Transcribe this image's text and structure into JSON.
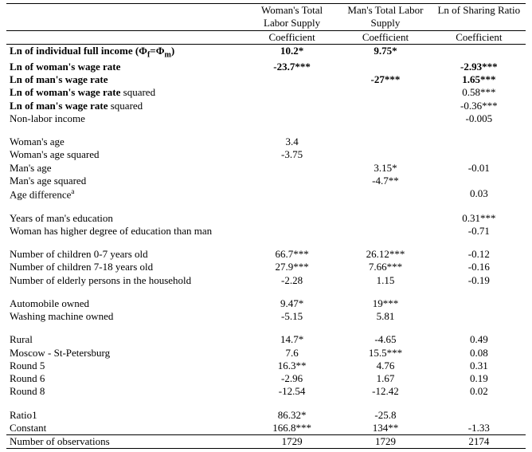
{
  "headers": {
    "woman_total": "Woman's Total Labor Supply",
    "man_total": "Man's Total Labor Supply",
    "sharing": "Ln of Sharing Ratio",
    "coef": "Coefficient"
  },
  "rows": [
    {
      "label": "Ln of individual full income (Φᵣ=Φₘ)",
      "alt_label": "Ln of individual full income (Φf=Φm)",
      "bold": true,
      "w": "10.2*",
      "m": "9.75*",
      "s": ""
    },
    {
      "label": "Ln of woman's wage rate",
      "bold": true,
      "w": "-23.7***",
      "m": "",
      "s": "-2.93***",
      "s_bold": true
    },
    {
      "label": "Ln of man's wage rate",
      "bold": true,
      "w": "",
      "m": "-27***",
      "s": "1.65***",
      "s_bold": true
    },
    {
      "label": "Ln of woman's wage rate squared",
      "bold_prefix": "Ln of woman's wage rate",
      "suffix": " squared",
      "w": "",
      "m": "",
      "s": "0.58***"
    },
    {
      "label": "Ln of man's wage rate squared",
      "bold_prefix": "Ln of man's wage rate",
      "suffix": " squared",
      "w": "",
      "m": "",
      "s": "-0.36***"
    },
    {
      "label": "Non-labor income",
      "w": "",
      "m": "",
      "s": "-0.005"
    },
    {
      "spacer": true
    },
    {
      "label": "Woman's age",
      "w": "3.4",
      "m": "",
      "s": ""
    },
    {
      "label": "Woman's age squared",
      "w": "-3.75",
      "m": "",
      "s": ""
    },
    {
      "label": "Man's age",
      "w": "",
      "m": "3.15*",
      "s": "-0.01"
    },
    {
      "label": "Man's age squared",
      "w": "",
      "m": "-4.7**",
      "s": ""
    },
    {
      "label": "Age difference",
      "sup": "a",
      "w": "",
      "m": "",
      "s": "0.03"
    },
    {
      "spacer": true
    },
    {
      "label": "Years of man's education",
      "w": "",
      "m": "",
      "s": "0.31***"
    },
    {
      "label": "Woman has higher degree of education than man",
      "w": "",
      "m": "",
      "s": "-0.71"
    },
    {
      "spacer": true
    },
    {
      "label": "Number of children 0-7 years old",
      "w": "66.7***",
      "m": "26.12***",
      "s": "-0.12"
    },
    {
      "label": "Number of children 7-18 years old",
      "w": "27.9***",
      "m": "7.66***",
      "s": "-0.16"
    },
    {
      "label": "Number of elderly persons in the household",
      "w": "-2.28",
      "m": "1.15",
      "s": "-0.19"
    },
    {
      "spacer": true
    },
    {
      "label": "Automobile owned",
      "w": "9.47*",
      "m": "19***",
      "s": ""
    },
    {
      "label": "Washing machine owned",
      "w": "-5.15",
      "m": "5.81",
      "s": ""
    },
    {
      "spacer": true
    },
    {
      "label": "Rural",
      "w": "14.7*",
      "m": "-4.65",
      "s": "0.49"
    },
    {
      "label": "Moscow - St-Petersburg",
      "w": "7.6",
      "m": "15.5***",
      "s": "0.08"
    },
    {
      "label": "Round 5",
      "w": "16.3**",
      "m": "4.76",
      "s": "0.31"
    },
    {
      "label": "Round 6",
      "w": "-2.96",
      "m": "1.67",
      "s": "0.19"
    },
    {
      "label": "Round 8",
      "w": "-12.54",
      "m": "-12.42",
      "s": "0.02"
    },
    {
      "spacer": true
    },
    {
      "label": "Ratio1",
      "w": "86.32*",
      "m": "-25.8",
      "s": ""
    },
    {
      "label": "Constant",
      "w": "166.8***",
      "m": "134**",
      "s": "-1.33"
    }
  ],
  "footer": {
    "label": "Number of observations",
    "w": "1729",
    "m": "1729",
    "s": "2174"
  }
}
